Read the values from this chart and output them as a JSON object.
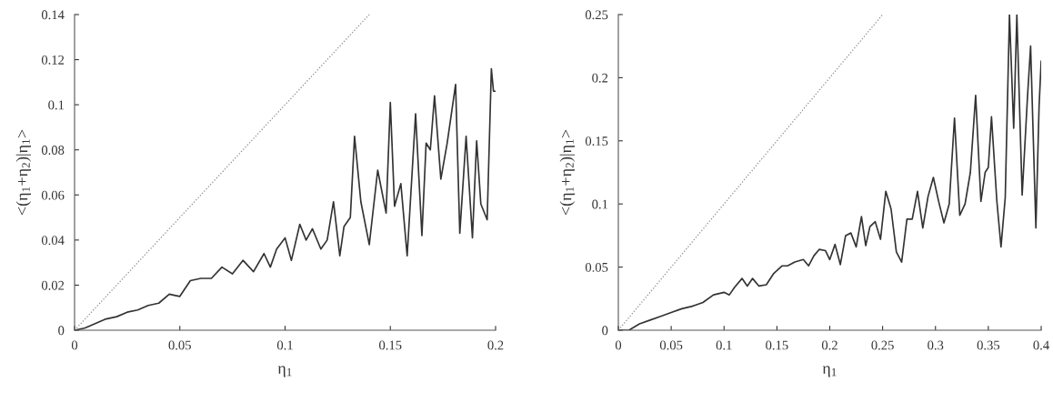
{
  "chart_data": [
    {
      "type": "line",
      "xlabel": "η$_{1}$",
      "ylabel": "<(η$_{1}$+η$_{2}$)|η$_{1}$>",
      "xlim": [
        0,
        0.2
      ],
      "ylim": [
        0,
        0.14
      ],
      "xticks": [
        0,
        0.05,
        0.1,
        0.15,
        0.2
      ],
      "yticks": [
        0,
        0.02,
        0.04,
        0.06,
        0.08,
        0.1,
        0.12,
        0.14
      ],
      "marker": "none",
      "series": [
        {
          "color": "#333333",
          "line_style": "solid",
          "x": [
            0,
            0.005,
            0.01,
            0.015,
            0.02,
            0.025,
            0.03,
            0.035,
            0.04,
            0.045,
            0.05,
            0.055,
            0.06,
            0.065,
            0.07,
            0.075,
            0.08,
            0.085,
            0.09,
            0.093,
            0.096,
            0.1,
            0.103,
            0.107,
            0.11,
            0.113,
            0.117,
            0.12,
            0.123,
            0.126,
            0.128,
            0.131,
            0.133,
            0.136,
            0.14,
            0.144,
            0.148,
            0.15,
            0.152,
            0.155,
            0.158,
            0.162,
            0.165,
            0.167,
            0.169,
            0.171,
            0.174,
            0.177,
            0.181,
            0.183,
            0.186,
            0.189,
            0.191,
            0.193,
            0.196,
            0.198,
            0.199,
            0.2
          ],
          "values": [
            0,
            0.001,
            0.003,
            0.005,
            0.006,
            0.008,
            0.009,
            0.011,
            0.012,
            0.016,
            0.015,
            0.022,
            0.023,
            0.023,
            0.028,
            0.025,
            0.031,
            0.026,
            0.034,
            0.028,
            0.036,
            0.041,
            0.031,
            0.047,
            0.04,
            0.045,
            0.036,
            0.04,
            0.057,
            0.033,
            0.046,
            0.05,
            0.086,
            0.057,
            0.038,
            0.071,
            0.052,
            0.101,
            0.055,
            0.065,
            0.033,
            0.096,
            0.042,
            0.083,
            0.08,
            0.104,
            0.067,
            0.083,
            0.109,
            0.043,
            0.086,
            0.041,
            0.084,
            0.056,
            0.049,
            0.116,
            0.106,
            0.106
          ]
        },
        {
          "color": "#888888",
          "line_style": "dotted",
          "x": [
            0,
            0.14
          ],
          "values": [
            0,
            0.14
          ]
        }
      ]
    },
    {
      "type": "line",
      "xlabel": "η$_{1}$",
      "ylabel": "<(η$_{1}$+η$_{2}$)|η$_{1}$>",
      "xlim": [
        0,
        0.4
      ],
      "ylim": [
        0,
        0.25
      ],
      "xticks": [
        0,
        0.05,
        0.1,
        0.15,
        0.2,
        0.25,
        0.3,
        0.35,
        0.4
      ],
      "yticks": [
        0,
        0.05,
        0.1,
        0.15,
        0.2,
        0.25
      ],
      "marker": "none",
      "series": [
        {
          "color": "#333333",
          "line_style": "solid",
          "x": [
            0,
            0.01,
            0.02,
            0.03,
            0.04,
            0.05,
            0.06,
            0.07,
            0.08,
            0.09,
            0.1,
            0.105,
            0.11,
            0.117,
            0.122,
            0.127,
            0.133,
            0.14,
            0.147,
            0.155,
            0.16,
            0.167,
            0.175,
            0.18,
            0.185,
            0.19,
            0.196,
            0.2,
            0.205,
            0.21,
            0.215,
            0.22,
            0.225,
            0.23,
            0.234,
            0.238,
            0.243,
            0.248,
            0.253,
            0.258,
            0.263,
            0.268,
            0.273,
            0.278,
            0.283,
            0.288,
            0.293,
            0.298,
            0.303,
            0.308,
            0.313,
            0.318,
            0.323,
            0.328,
            0.333,
            0.338,
            0.343,
            0.347,
            0.35,
            0.353,
            0.358,
            0.362,
            0.366,
            0.37,
            0.374,
            0.377,
            0.382,
            0.387,
            0.39,
            0.395,
            0.398,
            0.4
          ],
          "values": [
            0,
            0,
            0.005,
            0.008,
            0.011,
            0.014,
            0.017,
            0.019,
            0.022,
            0.028,
            0.03,
            0.028,
            0.034,
            0.041,
            0.035,
            0.041,
            0.035,
            0.036,
            0.045,
            0.051,
            0.051,
            0.054,
            0.056,
            0.051,
            0.059,
            0.064,
            0.063,
            0.056,
            0.068,
            0.052,
            0.075,
            0.077,
            0.066,
            0.09,
            0.067,
            0.082,
            0.086,
            0.072,
            0.11,
            0.096,
            0.062,
            0.054,
            0.088,
            0.088,
            0.11,
            0.081,
            0.106,
            0.121,
            0.102,
            0.085,
            0.1,
            0.168,
            0.091,
            0.1,
            0.125,
            0.186,
            0.102,
            0.125,
            0.129,
            0.169,
            0.103,
            0.066,
            0.105,
            0.25,
            0.16,
            0.25,
            0.107,
            0.184,
            0.225,
            0.081,
            0.177,
            0.213
          ]
        },
        {
          "color": "#888888",
          "line_style": "dotted",
          "x": [
            0,
            0.25
          ],
          "values": [
            0,
            0.25
          ]
        }
      ]
    }
  ]
}
